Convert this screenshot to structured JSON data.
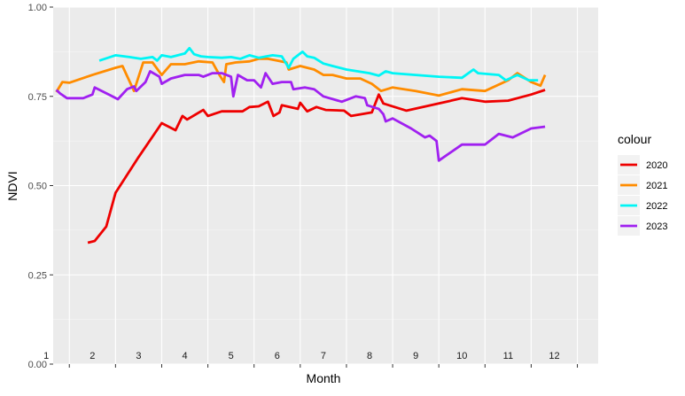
{
  "chart_data": {
    "type": "line",
    "xlabel": "Month",
    "ylabel": "NDVI",
    "xlim": [
      0.65,
      12.45
    ],
    "ylim": [
      0,
      1
    ],
    "x_tick_labels": [
      "1",
      "2",
      "3",
      "4",
      "5",
      "6",
      "7",
      "8",
      "9",
      "10",
      "11",
      "12"
    ],
    "y_ticks": [
      0,
      0.25,
      0.5,
      0.75,
      1
    ],
    "y_tick_labels": [
      "0.00",
      "0.25",
      "0.50",
      "0.75",
      "1.00"
    ],
    "grid": true,
    "legend": {
      "title": "colour",
      "position": "right"
    },
    "series": [
      {
        "name": "2020",
        "color": "#ee0000",
        "points": [
          [
            1.4,
            0.34
          ],
          [
            1.55,
            0.345
          ],
          [
            1.8,
            0.385
          ],
          [
            2.0,
            0.48
          ],
          [
            2.5,
            0.58
          ],
          [
            3.0,
            0.675
          ],
          [
            3.3,
            0.655
          ],
          [
            3.45,
            0.695
          ],
          [
            3.55,
            0.685
          ],
          [
            3.9,
            0.712
          ],
          [
            4.0,
            0.695
          ],
          [
            4.3,
            0.708
          ],
          [
            4.75,
            0.708
          ],
          [
            4.9,
            0.72
          ],
          [
            5.1,
            0.722
          ],
          [
            5.3,
            0.735
          ],
          [
            5.42,
            0.695
          ],
          [
            5.55,
            0.705
          ],
          [
            5.6,
            0.725
          ],
          [
            5.95,
            0.715
          ],
          [
            6.0,
            0.732
          ],
          [
            6.15,
            0.708
          ],
          [
            6.35,
            0.72
          ],
          [
            6.55,
            0.712
          ],
          [
            6.95,
            0.71
          ],
          [
            7.1,
            0.695
          ],
          [
            7.55,
            0.705
          ],
          [
            7.7,
            0.755
          ],
          [
            7.8,
            0.73
          ],
          [
            8.3,
            0.71
          ],
          [
            9.0,
            0.73
          ],
          [
            9.5,
            0.745
          ],
          [
            10.0,
            0.735
          ],
          [
            10.5,
            0.738
          ],
          [
            11.0,
            0.755
          ],
          [
            11.3,
            0.768
          ]
        ]
      },
      {
        "name": "2021",
        "color": "#ff8c00",
        "points": [
          [
            0.72,
            0.762
          ],
          [
            0.85,
            0.79
          ],
          [
            1.0,
            0.788
          ],
          [
            1.5,
            0.81
          ],
          [
            2.0,
            0.83
          ],
          [
            2.15,
            0.835
          ],
          [
            2.4,
            0.765
          ],
          [
            2.6,
            0.845
          ],
          [
            2.8,
            0.845
          ],
          [
            3.0,
            0.81
          ],
          [
            3.2,
            0.84
          ],
          [
            3.5,
            0.84
          ],
          [
            3.8,
            0.848
          ],
          [
            4.1,
            0.845
          ],
          [
            4.25,
            0.81
          ],
          [
            4.35,
            0.79
          ],
          [
            4.4,
            0.84
          ],
          [
            4.6,
            0.845
          ],
          [
            4.9,
            0.848
          ],
          [
            5.1,
            0.855
          ],
          [
            5.3,
            0.855
          ],
          [
            5.5,
            0.85
          ],
          [
            5.7,
            0.845
          ],
          [
            5.75,
            0.825
          ],
          [
            6.0,
            0.835
          ],
          [
            6.3,
            0.825
          ],
          [
            6.5,
            0.81
          ],
          [
            6.7,
            0.81
          ],
          [
            7.0,
            0.8
          ],
          [
            7.3,
            0.8
          ],
          [
            7.55,
            0.785
          ],
          [
            7.75,
            0.765
          ],
          [
            8.0,
            0.775
          ],
          [
            8.5,
            0.765
          ],
          [
            9.0,
            0.752
          ],
          [
            9.5,
            0.77
          ],
          [
            10.0,
            0.765
          ],
          [
            10.5,
            0.795
          ],
          [
            10.7,
            0.815
          ],
          [
            11.0,
            0.79
          ],
          [
            11.2,
            0.78
          ],
          [
            11.3,
            0.81
          ]
        ]
      },
      {
        "name": "2022",
        "color": "#00f5f5",
        "points": [
          [
            1.65,
            0.85
          ],
          [
            2.0,
            0.865
          ],
          [
            2.3,
            0.86
          ],
          [
            2.55,
            0.855
          ],
          [
            2.8,
            0.86
          ],
          [
            2.9,
            0.85
          ],
          [
            3.0,
            0.865
          ],
          [
            3.2,
            0.86
          ],
          [
            3.5,
            0.87
          ],
          [
            3.6,
            0.885
          ],
          [
            3.7,
            0.868
          ],
          [
            3.85,
            0.862
          ],
          [
            4.0,
            0.86
          ],
          [
            4.3,
            0.858
          ],
          [
            4.5,
            0.86
          ],
          [
            4.7,
            0.855
          ],
          [
            4.9,
            0.865
          ],
          [
            5.1,
            0.858
          ],
          [
            5.4,
            0.865
          ],
          [
            5.6,
            0.862
          ],
          [
            5.75,
            0.83
          ],
          [
            5.85,
            0.855
          ],
          [
            6.05,
            0.875
          ],
          [
            6.15,
            0.862
          ],
          [
            6.3,
            0.858
          ],
          [
            6.5,
            0.842
          ],
          [
            6.7,
            0.835
          ],
          [
            7.0,
            0.825
          ],
          [
            7.5,
            0.815
          ],
          [
            7.7,
            0.808
          ],
          [
            7.85,
            0.82
          ],
          [
            8.0,
            0.815
          ],
          [
            8.5,
            0.81
          ],
          [
            9.0,
            0.805
          ],
          [
            9.5,
            0.802
          ],
          [
            9.75,
            0.825
          ],
          [
            9.85,
            0.815
          ],
          [
            10.3,
            0.81
          ],
          [
            10.45,
            0.795
          ],
          [
            10.7,
            0.81
          ],
          [
            10.95,
            0.795
          ],
          [
            11.15,
            0.795
          ]
        ]
      },
      {
        "name": "2023",
        "color": "#a020f0",
        "points": [
          [
            0.72,
            0.768
          ],
          [
            0.8,
            0.758
          ],
          [
            0.95,
            0.745
          ],
          [
            1.3,
            0.745
          ],
          [
            1.5,
            0.755
          ],
          [
            1.55,
            0.775
          ],
          [
            1.9,
            0.752
          ],
          [
            2.05,
            0.742
          ],
          [
            2.25,
            0.77
          ],
          [
            2.4,
            0.778
          ],
          [
            2.45,
            0.765
          ],
          [
            2.65,
            0.79
          ],
          [
            2.75,
            0.82
          ],
          [
            2.95,
            0.805
          ],
          [
            3.0,
            0.785
          ],
          [
            3.2,
            0.8
          ],
          [
            3.5,
            0.81
          ],
          [
            3.8,
            0.81
          ],
          [
            3.9,
            0.805
          ],
          [
            4.1,
            0.815
          ],
          [
            4.3,
            0.815
          ],
          [
            4.5,
            0.805
          ],
          [
            4.55,
            0.75
          ],
          [
            4.65,
            0.81
          ],
          [
            4.85,
            0.795
          ],
          [
            5.0,
            0.795
          ],
          [
            5.15,
            0.775
          ],
          [
            5.25,
            0.815
          ],
          [
            5.4,
            0.785
          ],
          [
            5.6,
            0.79
          ],
          [
            5.8,
            0.79
          ],
          [
            5.85,
            0.77
          ],
          [
            6.1,
            0.775
          ],
          [
            6.3,
            0.77
          ],
          [
            6.5,
            0.75
          ],
          [
            6.9,
            0.735
          ],
          [
            7.2,
            0.75
          ],
          [
            7.4,
            0.745
          ],
          [
            7.45,
            0.725
          ],
          [
            7.7,
            0.715
          ],
          [
            7.8,
            0.7
          ],
          [
            7.85,
            0.68
          ],
          [
            8.0,
            0.688
          ],
          [
            8.4,
            0.66
          ],
          [
            8.7,
            0.635
          ],
          [
            8.8,
            0.64
          ],
          [
            8.95,
            0.625
          ],
          [
            9.0,
            0.57
          ],
          [
            9.5,
            0.615
          ],
          [
            10.0,
            0.615
          ],
          [
            10.3,
            0.645
          ],
          [
            10.6,
            0.635
          ],
          [
            11.0,
            0.66
          ],
          [
            11.3,
            0.665
          ]
        ]
      }
    ]
  }
}
